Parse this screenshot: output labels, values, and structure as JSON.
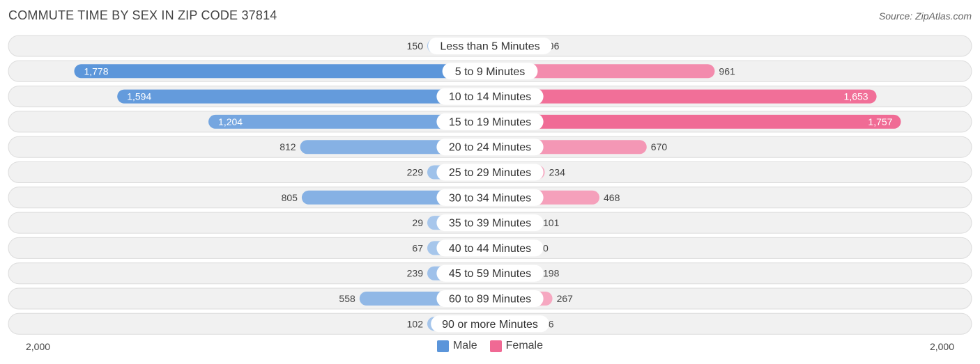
{
  "title": "COMMUTE TIME BY SEX IN ZIP CODE 37814",
  "source": "Source: ZipAtlas.com",
  "colors": {
    "male": "#6fa3dc",
    "male_strong": "#5b95da",
    "female": "#f48fb1",
    "female_strong": "#f06994",
    "row_bg": "#f1f1f1",
    "row_border": "#dcdcdc"
  },
  "chart_data": {
    "type": "bar",
    "orientation": "horizontal-diverging",
    "categories": [
      "Less than 5 Minutes",
      "5 to 9 Minutes",
      "10 to 14 Minutes",
      "15 to 19 Minutes",
      "20 to 24 Minutes",
      "25 to 29 Minutes",
      "30 to 34 Minutes",
      "35 to 39 Minutes",
      "40 to 44 Minutes",
      "45 to 59 Minutes",
      "60 to 89 Minutes",
      "90 or more Minutes"
    ],
    "series": [
      {
        "name": "Male",
        "values": [
          150,
          1778,
          1594,
          1204,
          812,
          229,
          805,
          29,
          67,
          239,
          558,
          102
        ],
        "labels": [
          "150",
          "1,778",
          "1,594",
          "1,204",
          "812",
          "229",
          "805",
          "29",
          "67",
          "239",
          "558",
          "102"
        ]
      },
      {
        "name": "Female",
        "values": [
          196,
          961,
          1653,
          1757,
          670,
          234,
          468,
          101,
          0,
          198,
          267,
          96
        ],
        "labels": [
          "196",
          "961",
          "1,653",
          "1,757",
          "670",
          "234",
          "468",
          "101",
          "0",
          "198",
          "267",
          "96"
        ]
      }
    ],
    "xlim": [
      -2000,
      2000
    ],
    "axis_labels": {
      "left": "2,000",
      "right": "2,000"
    },
    "legend_position": "bottom-center"
  }
}
